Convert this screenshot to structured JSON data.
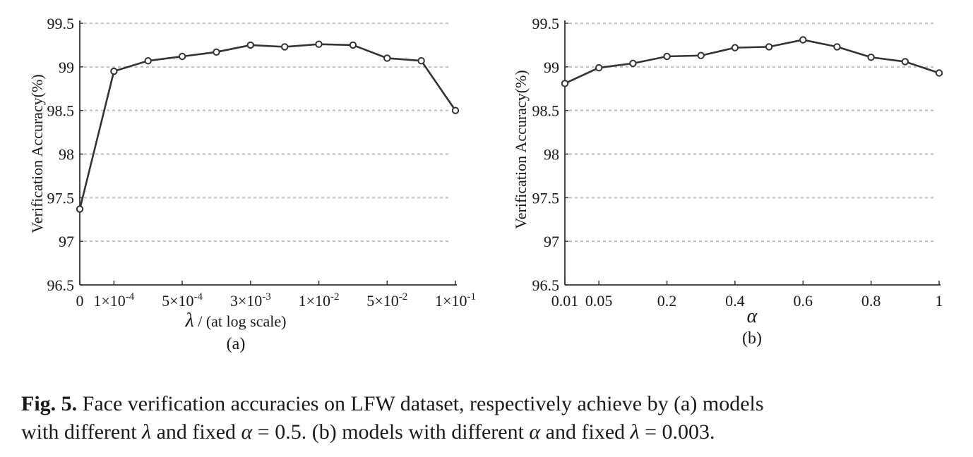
{
  "chart_data": [
    {
      "type": "line",
      "subplot_label": "(a)",
      "xlabel_symbol": "λ",
      "xlabel_text": "/  (at log scale)",
      "ylabel": "Verification Accuracy(%)",
      "ylim": [
        96.5,
        99.5
      ],
      "yticks": [
        "99.5",
        "99",
        "98.5",
        "98",
        "97.5",
        "97",
        "96.5"
      ],
      "yscale": "linear",
      "xscale": "log (categorical ticks)",
      "grid": "horizontal dashed",
      "x_tick_labels": [
        {
          "base": "0",
          "exp": ""
        },
        {
          "base": "1×10",
          "exp": "-4"
        },
        {
          "base": "5×10",
          "exp": "-4"
        },
        {
          "base": "3×10",
          "exp": "-3"
        },
        {
          "base": "1×10",
          "exp": "-2"
        },
        {
          "base": "5×10",
          "exp": "-2"
        },
        {
          "base": "1×10",
          "exp": "-1"
        }
      ],
      "x_tick_index": [
        0,
        1,
        3,
        5,
        7,
        9,
        11
      ],
      "n_points": 12,
      "values": [
        97.37,
        98.95,
        99.07,
        99.12,
        99.17,
        99.25,
        99.23,
        99.26,
        99.25,
        99.1,
        99.07,
        98.5
      ]
    },
    {
      "type": "line",
      "subplot_label": "(b)",
      "xlabel_symbol": "α",
      "ylabel": "Verification Accuracy(%)",
      "ylim": [
        96.5,
        99.5
      ],
      "yticks": [
        "99.5",
        "99",
        "98.5",
        "98",
        "97.5",
        "97",
        "96.5"
      ],
      "grid": "horizontal dashed",
      "x_tick_labels": [
        "0.01",
        "0.05",
        "0.2",
        "0.4",
        "0.6",
        "0.8",
        "1"
      ],
      "x_tick_index": [
        0,
        1,
        3,
        5,
        7,
        9,
        11
      ],
      "x": [
        0.01,
        0.05,
        0.1,
        0.2,
        0.3,
        0.4,
        0.5,
        0.6,
        0.7,
        0.8,
        0.9,
        1.0
      ],
      "values": [
        98.81,
        98.99,
        99.04,
        99.12,
        99.13,
        99.22,
        99.23,
        99.31,
        99.23,
        99.11,
        99.06,
        98.93
      ]
    }
  ],
  "caption": {
    "label": "Fig. 5.",
    "text_1": " Face verification accuracies on LFW dataset, respectively achieve by (a) models",
    "text_2": "with different ",
    "sym_lambda": "λ",
    "text_3": " and fixed ",
    "sym_alpha": "α",
    "text_4": " = 0.5. (b) models with different ",
    "text_5": " and fixed ",
    "text_6": " = 0.003."
  }
}
